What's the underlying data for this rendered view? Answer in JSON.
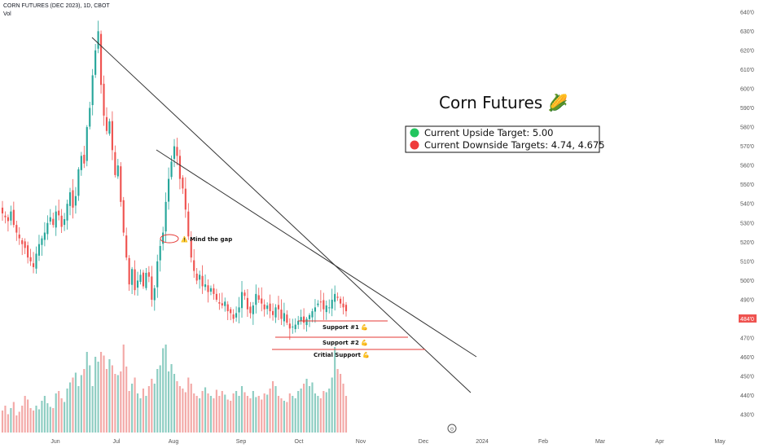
{
  "header": {
    "symbol_line": "CORN FUTURES (DEC 2023), 1D, CBOT",
    "indicator": "Vol"
  },
  "price_axis": {
    "ticks": [
      "640'0",
      "630'0",
      "620'0",
      "610'0",
      "600'0",
      "590'0",
      "580'0",
      "570'0",
      "560'0",
      "550'0",
      "540'0",
      "530'0",
      "520'0",
      "510'0",
      "500'0",
      "490'0",
      "480'0",
      "470'0",
      "460'0",
      "450'0",
      "440'0",
      "430'0"
    ],
    "last_price_label": "484'0"
  },
  "time_axis": {
    "labels": [
      "Jun",
      "Jul",
      "Aug",
      "Sep",
      "Oct",
      "Nov",
      "Dec",
      "2024",
      "Feb",
      "Mar",
      "Apr",
      "May"
    ]
  },
  "title": "Corn Futures 🌽",
  "legend": {
    "items": [
      {
        "label": "Current Upside Target: 5.00",
        "color": "#22c55e"
      },
      {
        "label": "Current Downside Targets: 4.74, 4.675",
        "color": "#ef3b3b"
      }
    ]
  },
  "annotations": {
    "gap": "⚠️ Mind the gap",
    "support1": "Support #1 💪",
    "support2": "Support #2 💪",
    "critical": "Critial Support 💪"
  },
  "colors": {
    "up": "#26a69a",
    "down": "#ef5350",
    "vol_up": "#8dcdc2",
    "vol_down": "#f3a9a7",
    "support_line": "#e53935",
    "trend_line": "#333333",
    "price_tag": "#ef5350"
  },
  "chart_data": {
    "type": "candlestick",
    "title": "Corn Futures",
    "series": [
      {
        "name": "CORN FUTURES (DEC 2023)",
        "kind": "candles",
        "closes_cents": [
          535,
          533,
          531,
          536,
          529,
          525,
          522,
          519,
          517,
          512,
          510,
          507,
          514,
          519,
          522,
          525,
          530,
          533,
          529,
          536,
          534,
          528,
          532,
          540,
          546,
          538,
          544,
          558,
          565,
          561,
          580,
          590,
          607,
          620,
          630,
          602,
          586,
          578,
          583,
          568,
          555,
          560,
          541,
          525,
          512,
          498,
          506,
          495,
          500,
          503,
          497,
          504,
          502,
          490,
          496,
          510,
          518,
          525,
          541,
          553,
          562,
          570,
          565,
          553,
          548,
          537,
          523,
          512,
          505,
          500,
          503,
          497,
          498,
          494,
          496,
          493,
          490,
          488,
          487,
          489,
          484,
          483,
          480,
          483,
          486,
          494,
          492,
          485,
          483,
          487,
          493,
          490,
          488,
          485,
          487,
          484,
          482,
          486,
          485,
          480,
          483,
          478,
          475,
          476,
          477,
          479,
          481,
          478,
          480,
          482,
          484,
          486,
          488,
          489,
          485,
          487,
          486,
          490,
          493,
          491,
          488,
          486,
          484
        ]
      },
      {
        "name": "Vol",
        "kind": "volume",
        "relative": [
          0.18,
          0.22,
          0.15,
          0.2,
          0.25,
          0.14,
          0.17,
          0.22,
          0.3,
          0.27,
          0.2,
          0.18,
          0.22,
          0.19,
          0.26,
          0.3,
          0.24,
          0.21,
          0.2,
          0.32,
          0.34,
          0.28,
          0.25,
          0.36,
          0.41,
          0.45,
          0.49,
          0.38,
          0.47,
          0.52,
          0.66,
          0.55,
          0.38,
          0.62,
          0.58,
          0.66,
          0.63,
          0.52,
          0.6,
          0.55,
          0.48,
          0.47,
          0.5,
          0.72,
          0.54,
          0.34,
          0.4,
          0.45,
          0.32,
          0.28,
          0.36,
          0.3,
          0.38,
          0.44,
          0.4,
          0.52,
          0.55,
          0.69,
          0.72,
          0.5,
          0.56,
          0.48,
          0.42,
          0.38,
          0.36,
          0.33,
          0.45,
          0.4,
          0.32,
          0.3,
          0.28,
          0.34,
          0.37,
          0.32,
          0.3,
          0.28,
          0.35,
          0.3,
          0.34,
          0.31,
          0.27,
          0.26,
          0.32,
          0.34,
          0.3,
          0.38,
          0.33,
          0.3,
          0.28,
          0.34,
          0.29,
          0.3,
          0.27,
          0.32,
          0.31,
          0.36,
          0.42,
          0.38,
          0.3,
          0.28,
          0.26,
          0.25,
          0.32,
          0.3,
          0.28,
          0.34,
          0.36,
          0.4,
          0.44,
          0.38,
          0.41,
          0.32,
          0.3,
          0.28,
          0.34,
          0.33,
          0.36,
          0.45,
          0.7,
          0.52,
          0.48,
          0.4,
          0.3
        ]
      }
    ],
    "ylim": [
      425,
      645
    ],
    "support_levels": [
      481,
      474,
      467.5
    ],
    "gap_level": 525,
    "trendlines": [
      {
        "from": {
          "t": "Jun",
          "price": 630
        },
        "to": {
          "t": "Dec",
          "price": 445
        }
      },
      {
        "from": {
          "t": "Jul",
          "price": 572
        },
        "to": {
          "t": "Dec",
          "price": 463
        }
      }
    ]
  }
}
